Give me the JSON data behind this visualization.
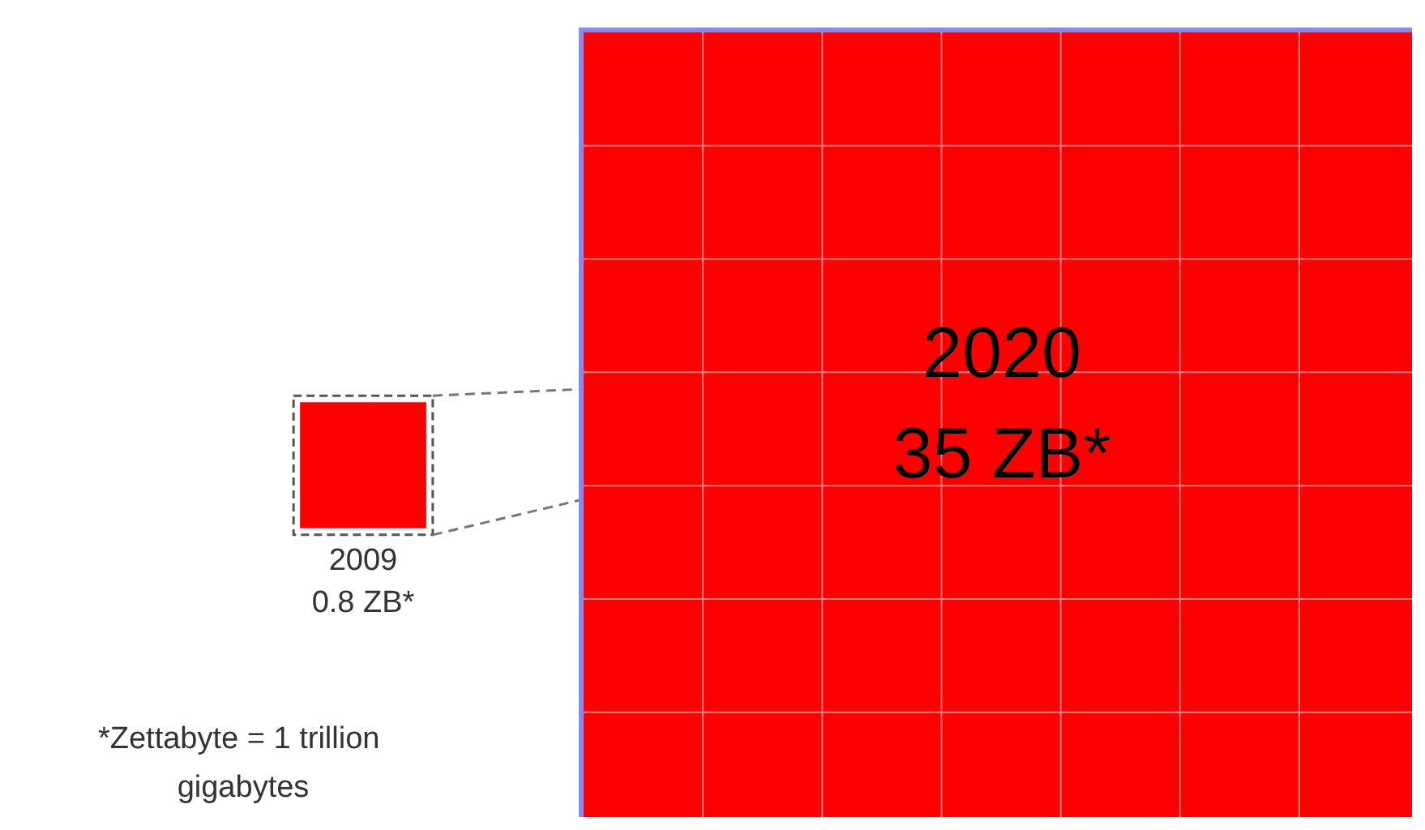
{
  "chart_data": {
    "type": "other",
    "categories": [
      "2009",
      "2020"
    ],
    "values": [
      0.8,
      35
    ],
    "value_labels": [
      "0.8 ZB*",
      "35 ZB*"
    ],
    "colors": [
      "#ff0000",
      "#ff0000"
    ],
    "annotations": [
      "*Zettabyte = 1 trillion gigabytes"
    ]
  }
}
